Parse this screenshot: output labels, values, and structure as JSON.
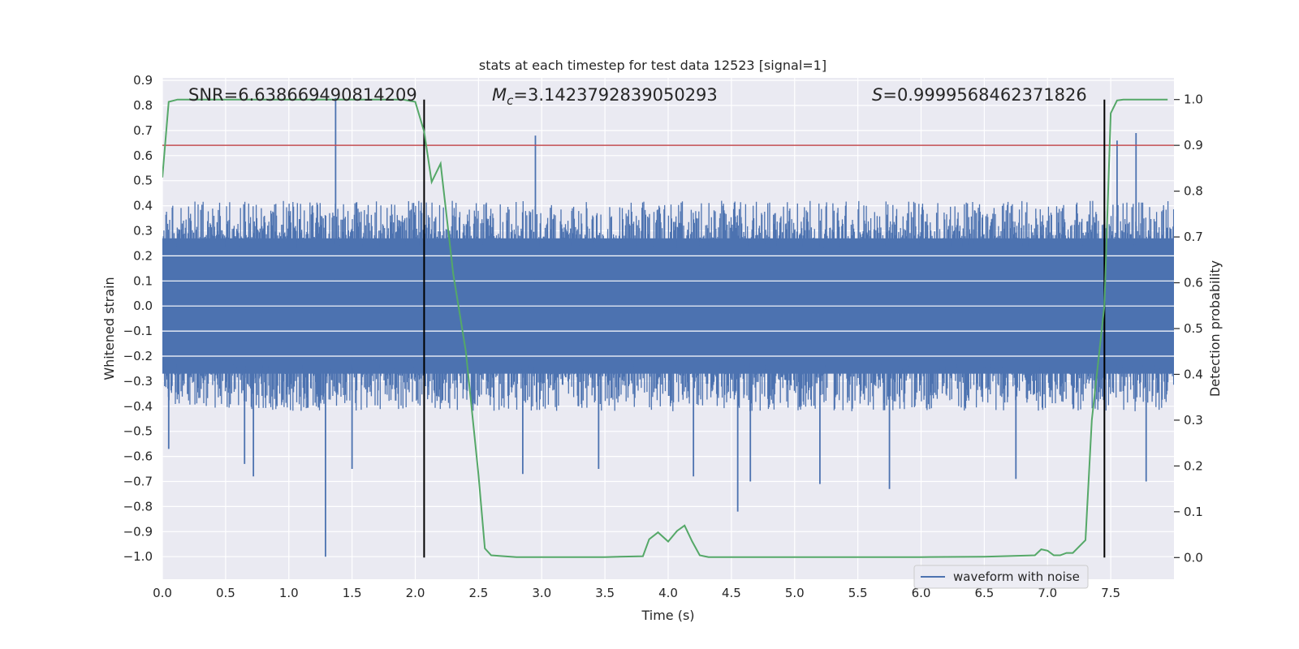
{
  "chart_data": {
    "type": "line",
    "title": "stats at each timestep for test data 12523 [signal=1]",
    "xlabel": "Time (s)",
    "ylabel": "Whitened strain",
    "y2label": "Detection probability",
    "xlim": [
      0.0,
      8.0
    ],
    "ylim": [
      -1.09,
      0.91
    ],
    "y2lim": [
      -0.0473,
      1.0473
    ],
    "xticks": [
      0.0,
      0.5,
      1.0,
      1.5,
      2.0,
      2.5,
      3.0,
      3.5,
      4.0,
      4.5,
      5.0,
      5.5,
      6.0,
      6.5,
      7.0,
      7.5
    ],
    "xtick_labels": [
      "0.0",
      "0.5",
      "1.0",
      "1.5",
      "2.0",
      "2.5",
      "3.0",
      "3.5",
      "4.0",
      "4.5",
      "5.0",
      "5.5",
      "6.0",
      "6.5",
      "7.0",
      "7.5"
    ],
    "yticks": [
      0.9,
      0.8,
      0.7,
      0.6,
      0.5,
      0.4,
      0.3,
      0.2,
      0.1,
      0.0,
      -0.1,
      -0.2,
      -0.3,
      -0.4,
      -0.5,
      -0.6,
      -0.7,
      -0.8,
      -0.9,
      -1.0
    ],
    "ytick_labels": [
      "0.9",
      "0.8",
      "0.7",
      "0.6",
      "0.5",
      "0.4",
      "0.3",
      "0.2",
      "0.1",
      "0.0",
      "−0.1",
      "−0.2",
      "−0.3",
      "−0.4",
      "−0.5",
      "−0.6",
      "−0.7",
      "−0.8",
      "−0.9",
      "−1.0"
    ],
    "y2ticks": [
      1.0,
      0.9,
      0.8,
      0.7,
      0.6,
      0.5,
      0.4,
      0.3,
      0.2,
      0.1,
      0.0
    ],
    "y2tick_labels": [
      "1.0",
      "0.9",
      "0.8",
      "0.7",
      "0.6",
      "0.5",
      "0.4",
      "0.3",
      "0.2",
      "0.1",
      "0.0"
    ],
    "annotations": {
      "snr": "SNR=6.638669490814209",
      "mc_symbol": "M",
      "mc_sub": "c",
      "mc_value": "=3.1423792839050293",
      "s_symbol": "S",
      "s_value": "=0.9999568462371826"
    },
    "legend": {
      "label": "waveform with noise",
      "placement": "lower-right"
    },
    "threshold_line": {
      "y2_value": 0.9,
      "color": "#c44e52"
    },
    "vertical_lines": [
      2.07,
      7.45
    ],
    "waveform": {
      "name": "waveform with noise",
      "color": "#4c72b0",
      "dense_band": [
        -0.27,
        0.27
      ],
      "samples": 1600,
      "seed": 12523,
      "typical_amplitude": 0.42,
      "spikes": [
        {
          "x": 1.37,
          "y": 0.83
        },
        {
          "x": 1.29,
          "y": -1.0
        },
        {
          "x": 2.95,
          "y": 0.68
        },
        {
          "x": 7.7,
          "y": 0.69
        },
        {
          "x": 7.55,
          "y": 0.66
        },
        {
          "x": 4.55,
          "y": -0.82
        },
        {
          "x": 5.75,
          "y": -0.73
        },
        {
          "x": 7.78,
          "y": -0.7
        },
        {
          "x": 0.05,
          "y": -0.57
        },
        {
          "x": 0.72,
          "y": -0.68
        },
        {
          "x": 2.85,
          "y": -0.67
        },
        {
          "x": 4.2,
          "y": -0.68
        },
        {
          "x": 6.75,
          "y": -0.69
        },
        {
          "x": 5.2,
          "y": -0.71
        },
        {
          "x": 0.65,
          "y": -0.63
        },
        {
          "x": 1.5,
          "y": -0.65
        },
        {
          "x": 3.45,
          "y": -0.65
        },
        {
          "x": 4.65,
          "y": -0.7
        }
      ]
    },
    "detection_probability": {
      "name": "detection probability",
      "color": "#55a868",
      "x": [
        0.0,
        0.05,
        0.12,
        0.25,
        0.5,
        1.0,
        1.5,
        1.9,
        2.0,
        2.07,
        2.13,
        2.2,
        2.3,
        2.4,
        2.5,
        2.55,
        2.6,
        2.7,
        2.8,
        3.0,
        3.5,
        3.8,
        3.85,
        3.92,
        4.0,
        4.07,
        4.13,
        4.19,
        4.25,
        4.32,
        4.4,
        4.6,
        4.8,
        5.0,
        5.5,
        6.0,
        6.5,
        6.9,
        6.95,
        7.0,
        7.05,
        7.1,
        7.15,
        7.2,
        7.3,
        7.35,
        7.45,
        7.5,
        7.55,
        7.6,
        7.7,
        7.95
      ],
      "y": [
        0.83,
        0.995,
        1.0,
        1.0,
        1.0,
        1.0,
        1.0,
        1.0,
        0.995,
        0.93,
        0.82,
        0.86,
        0.62,
        0.45,
        0.18,
        0.02,
        0.005,
        0.003,
        0.001,
        0.001,
        0.001,
        0.003,
        0.04,
        0.055,
        0.035,
        0.058,
        0.07,
        0.035,
        0.005,
        0.001,
        0.001,
        0.001,
        0.001,
        0.001,
        0.001,
        0.001,
        0.002,
        0.005,
        0.018,
        0.015,
        0.005,
        0.005,
        0.01,
        0.01,
        0.038,
        0.3,
        0.55,
        0.97,
        0.998,
        1.0,
        1.0,
        1.0
      ]
    }
  }
}
